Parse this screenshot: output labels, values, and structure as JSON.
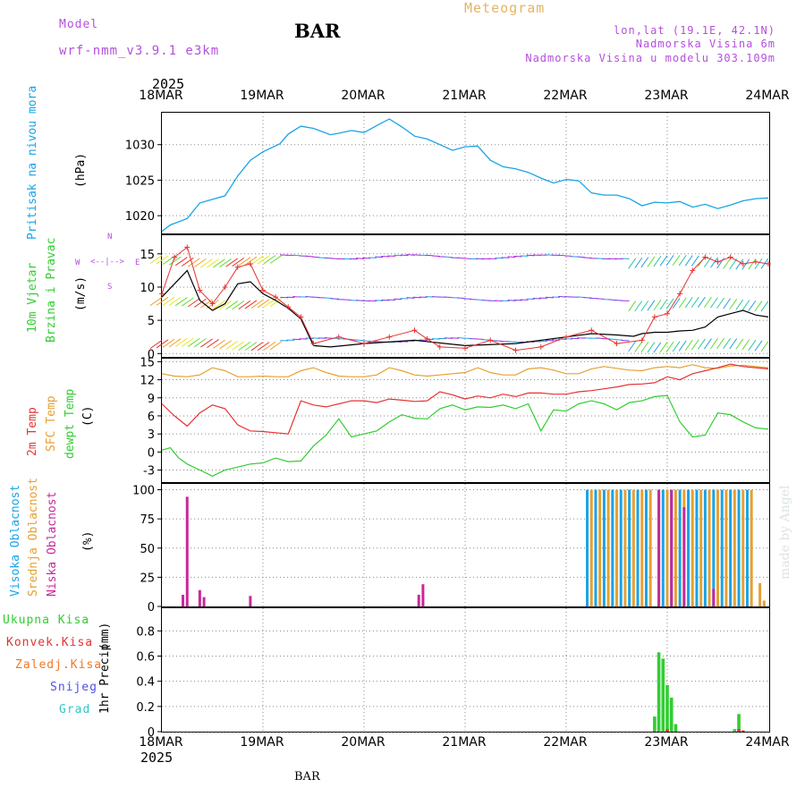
{
  "header": {
    "model_label": "Model",
    "model_name": "wrf-nmm_v3.9.1 e3km",
    "station": "BAR",
    "title": "Meteogram",
    "lonlat": "lon,lat (19.1E, 42.1N)",
    "elevation": "Nadmorska Visina 6m",
    "model_elevation": "Nadmorska Visina u modelu 303.109m",
    "footer_station": "BAR",
    "credit": "made by Angel"
  },
  "colors": {
    "pressure": "#1aa3e6",
    "wind_speed": "#000000",
    "gust": "#e63232",
    "temp2m": "#e63232",
    "sfc_temp": "#e6a032",
    "dewpt": "#32cd32",
    "high_cloud": "#1aa3e6",
    "mid_cloud": "#e6a032",
    "low_cloud": "#c8289b",
    "total_precip": "#32cd32",
    "conv_precip": "#e63232",
    "frz_precip": "#f07828",
    "snow": "#5050e6",
    "hail": "#32c8c8",
    "label_purple": "#b450dc"
  },
  "time_axis": {
    "year": "2025",
    "dates": [
      "18MAR",
      "19MAR",
      "20MAR",
      "21MAR",
      "22MAR",
      "23MAR",
      "24MAR"
    ],
    "range_hours": [
      0,
      144
    ]
  },
  "chart_data": [
    {
      "type": "line",
      "name": "pressure",
      "ylabel": "Pritisak na nivou mora",
      "unit": "(hPa)",
      "ylim": [
        1017.5,
        1034.5
      ],
      "yticks": [
        1020,
        1025,
        1030
      ],
      "series": [
        {
          "name": "Pritisak",
          "x": [
            0,
            2,
            6,
            9,
            12,
            15,
            18,
            21,
            24,
            28,
            30,
            33,
            36,
            40,
            42,
            45,
            48,
            52,
            54,
            57,
            60,
            63,
            66,
            69,
            72,
            75,
            78,
            81,
            84,
            87,
            90,
            93,
            96,
            99,
            102,
            105,
            108,
            111,
            114,
            117,
            120,
            123,
            126,
            129,
            132,
            135,
            138,
            141,
            144
          ],
          "values": [
            1017.8,
            1018.7,
            1019.6,
            1021.8,
            1022.3,
            1022.8,
            1025.6,
            1027.8,
            1029.0,
            1030.1,
            1031.5,
            1032.6,
            1032.3,
            1031.4,
            1031.6,
            1032.0,
            1031.7,
            1033.0,
            1033.6,
            1032.5,
            1031.2,
            1030.8,
            1030.0,
            1029.2,
            1029.7,
            1029.8,
            1027.8,
            1026.9,
            1026.6,
            1026.1,
            1025.3,
            1024.6,
            1025.1,
            1024.9,
            1023.2,
            1022.9,
            1022.9,
            1022.4,
            1021.4,
            1021.9,
            1021.8,
            1022.0,
            1021.2,
            1021.6,
            1021.0,
            1021.5,
            1022.1,
            1022.4,
            1022.5
          ]
        }
      ]
    },
    {
      "type": "line",
      "name": "wind",
      "ylabel": "10m Vjetar",
      "ylabel2": "Brzina i Pravac",
      "unit": "(m/s)",
      "ylim": [
        -0.5,
        17.8
      ],
      "yticks": [
        0,
        5,
        10,
        15
      ],
      "compass": {
        "w": "W",
        "e": "E",
        "n": "N",
        "s": "S"
      },
      "series": [
        {
          "name": "brzina",
          "x": [
            0,
            3,
            6,
            9,
            12,
            15,
            18,
            21,
            24,
            27,
            30,
            33,
            36,
            40,
            48,
            60,
            72,
            84,
            96,
            102,
            108,
            112,
            114,
            117,
            120,
            123,
            126,
            129,
            132,
            135,
            138,
            141,
            144
          ],
          "values": [
            8.5,
            10.5,
            12.5,
            8.0,
            6.5,
            7.5,
            10.5,
            10.8,
            9.0,
            8.0,
            6.8,
            5.2,
            1.2,
            1.0,
            1.5,
            2.0,
            1.2,
            1.5,
            2.5,
            3.0,
            2.8,
            2.6,
            3.0,
            3.2,
            3.2,
            3.4,
            3.5,
            4.0,
            5.5,
            6.0,
            6.5,
            5.8,
            5.5
          ]
        },
        {
          "name": "udar",
          "x": [
            0,
            3,
            6,
            9,
            12,
            15,
            18,
            21,
            24,
            27,
            30,
            33,
            36,
            42,
            48,
            54,
            60,
            63,
            66,
            72,
            78,
            84,
            90,
            96,
            102,
            108,
            114,
            117,
            120,
            123,
            126,
            129,
            132,
            135,
            138,
            141,
            144
          ],
          "values": [
            9.0,
            14.5,
            16.0,
            9.5,
            7.5,
            10.0,
            13.0,
            13.5,
            9.5,
            8.5,
            7.0,
            5.5,
            1.5,
            2.5,
            1.5,
            2.5,
            3.5,
            2.2,
            1.0,
            0.8,
            2.0,
            0.5,
            1.0,
            2.5,
            3.5,
            1.5,
            2.0,
            5.5,
            6.0,
            9.0,
            12.5,
            14.5,
            13.8,
            14.5,
            13.5,
            13.8,
            13.5
          ]
        }
      ]
    },
    {
      "type": "line",
      "name": "temperature",
      "ylabel": "2m Temp",
      "ylabel2": "SFC Temp",
      "ylabel3": "dewpt Temp",
      "unit": "(C)",
      "ylim": [
        -5,
        15.5
      ],
      "yticks": [
        -3,
        0,
        3,
        6,
        9,
        12,
        15
      ],
      "series": [
        {
          "name": "2m Temp",
          "x": [
            0,
            3,
            6,
            9,
            12,
            15,
            18,
            21,
            24,
            27,
            30,
            33,
            36,
            39,
            42,
            45,
            48,
            51,
            54,
            57,
            60,
            63,
            66,
            69,
            72,
            75,
            78,
            81,
            84,
            87,
            90,
            93,
            96,
            99,
            102,
            105,
            108,
            111,
            114,
            117,
            120,
            123,
            126,
            129,
            132,
            135,
            138,
            141,
            144
          ],
          "values": [
            8.0,
            6.0,
            4.3,
            6.5,
            7.8,
            7.2,
            4.5,
            3.5,
            3.4,
            3.2,
            3.0,
            8.5,
            7.8,
            7.5,
            8.0,
            8.5,
            8.5,
            8.2,
            8.8,
            8.6,
            8.4,
            8.5,
            10.0,
            9.5,
            8.8,
            9.3,
            9.0,
            9.6,
            9.2,
            9.8,
            9.8,
            9.6,
            9.6,
            10.0,
            10.2,
            10.5,
            10.8,
            11.2,
            11.3,
            11.5,
            12.5,
            12.0,
            13.0,
            13.5,
            14.0,
            14.6,
            14.2,
            14.0,
            13.8
          ]
        },
        {
          "name": "SFC Temp",
          "x": [
            0,
            3,
            6,
            9,
            12,
            15,
            18,
            21,
            24,
            27,
            30,
            33,
            36,
            39,
            42,
            45,
            48,
            51,
            54,
            57,
            60,
            63,
            66,
            69,
            72,
            75,
            78,
            81,
            84,
            87,
            90,
            93,
            96,
            99,
            102,
            105,
            108,
            111,
            114,
            117,
            120,
            123,
            126,
            129,
            132,
            135,
            138,
            141,
            144
          ],
          "values": [
            13.0,
            12.6,
            12.5,
            12.8,
            14.0,
            13.5,
            12.5,
            12.5,
            12.6,
            12.5,
            12.5,
            13.5,
            14.0,
            13.2,
            12.6,
            12.5,
            12.5,
            12.8,
            14.0,
            13.5,
            12.8,
            12.6,
            12.8,
            13.0,
            13.2,
            14.0,
            13.2,
            12.8,
            12.8,
            13.8,
            14.0,
            13.6,
            13.0,
            13.0,
            13.8,
            14.2,
            13.9,
            13.6,
            13.5,
            14.0,
            14.2,
            14.0,
            14.5,
            14.0,
            13.9,
            14.3,
            14.4,
            14.2,
            14.0
          ]
        },
        {
          "name": "dewpt Temp",
          "x": [
            0,
            2,
            4,
            6,
            9,
            12,
            15,
            18,
            21,
            24,
            27,
            30,
            33,
            36,
            39,
            42,
            45,
            48,
            51,
            54,
            57,
            60,
            63,
            66,
            69,
            72,
            75,
            78,
            81,
            84,
            87,
            90,
            93,
            96,
            99,
            102,
            105,
            108,
            111,
            114,
            117,
            120,
            123,
            126,
            129,
            132,
            135,
            138,
            141,
            144
          ],
          "values": [
            0.3,
            0.7,
            -1.0,
            -2.0,
            -3.0,
            -4.0,
            -3.0,
            -2.5,
            -2.0,
            -1.8,
            -1.0,
            -1.6,
            -1.5,
            1.0,
            2.8,
            5.5,
            2.5,
            3.0,
            3.5,
            5.0,
            6.2,
            5.6,
            5.5,
            7.2,
            7.8,
            7.0,
            7.5,
            7.4,
            7.8,
            7.2,
            8.0,
            3.5,
            7.0,
            6.8,
            8.0,
            8.5,
            8.0,
            7.0,
            8.2,
            8.5,
            9.2,
            9.4,
            5.0,
            2.5,
            2.8,
            6.5,
            6.2,
            5.0,
            4.0,
            3.8
          ]
        }
      ]
    },
    {
      "type": "bar",
      "name": "cloud",
      "ylabel": "Visoka Oblacnost",
      "ylabel2": "Srednja Oblacnost",
      "ylabel3": "Niska Oblacnost",
      "unit": "(%)",
      "ylim": [
        0,
        105
      ],
      "yticks": [
        0,
        25,
        50,
        75,
        100
      ],
      "series": [
        {
          "name": "Visoka Oblacnost",
          "x": [
            101,
            103,
            105,
            107,
            109,
            111,
            113,
            115,
            119,
            121,
            123,
            125,
            127,
            129,
            131,
            133,
            135,
            137,
            139
          ],
          "values": [
            100,
            100,
            100,
            100,
            100,
            100,
            100,
            100,
            100,
            100,
            100,
            100,
            100,
            100,
            100,
            100,
            100,
            100,
            100
          ]
        },
        {
          "name": "Srednja Oblacnost",
          "x": [
            102,
            104,
            106,
            108,
            110,
            112,
            114,
            116,
            118,
            120,
            122,
            124,
            126,
            128,
            130,
            132,
            134,
            136,
            138,
            140,
            142,
            143
          ],
          "values": [
            100,
            100,
            100,
            100,
            100,
            100,
            100,
            100,
            100,
            100,
            100,
            100,
            100,
            100,
            100,
            100,
            100,
            100,
            100,
            100,
            20,
            5
          ]
        },
        {
          "name": "Niska Oblacnost",
          "x": [
            5,
            6,
            9,
            10,
            21,
            61,
            62,
            118,
            121,
            124,
            131
          ],
          "values": [
            10,
            94,
            14,
            8,
            9,
            10,
            19,
            100,
            100,
            85,
            15
          ]
        }
      ]
    },
    {
      "type": "bar",
      "name": "precip",
      "ylabel": "1hr Precip",
      "unit": "(mm)",
      "ylim": [
        0,
        0.98
      ],
      "yticks": [
        0,
        0.2,
        0.4,
        0.6,
        0.8
      ],
      "legend": [
        "Ukupna Kisa",
        "Konvek.Kisa",
        "Zaledj.Kisa",
        "Snijeg",
        "Grad"
      ],
      "series": [
        {
          "name": "Ukupna Kisa",
          "x": [
            117,
            118,
            119,
            120,
            121,
            122,
            136,
            137
          ],
          "values": [
            0.12,
            0.63,
            0.58,
            0.37,
            0.27,
            0.06,
            0.02,
            0.14
          ]
        },
        {
          "name": "Konvek.Kisa",
          "x": [
            120,
            137,
            138
          ],
          "values": [
            0.02,
            0.02,
            0.01
          ]
        }
      ]
    }
  ]
}
